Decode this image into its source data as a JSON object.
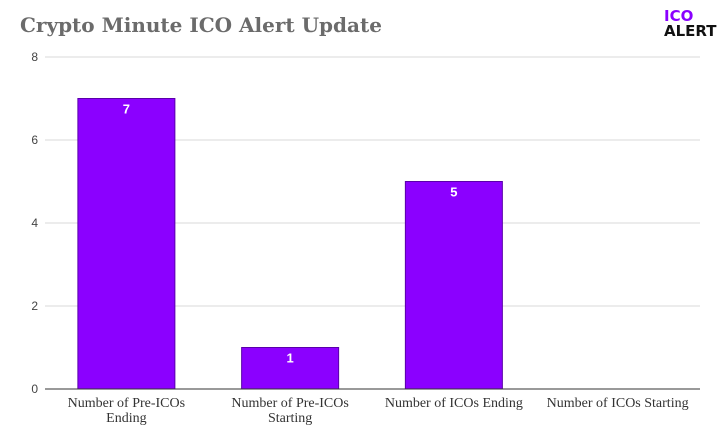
{
  "header": {
    "title": "Crypto Minute ICO Alert Update",
    "logo_line1": "ICO",
    "logo_line2": "ALERT"
  },
  "colors": {
    "bar": "#8b00ff",
    "bar_edge": "#5a00aa",
    "grid": "#d9d9d9",
    "axis": "#333333"
  },
  "chart_data": {
    "type": "bar",
    "title": "Crypto Minute ICO Alert Update",
    "categories": [
      [
        "Number of Pre-ICOs",
        "Ending"
      ],
      [
        "Number of Pre-ICOs",
        "Starting"
      ],
      [
        "Number of ICOs Ending"
      ],
      [
        "Number of ICOs Starting"
      ]
    ],
    "values": [
      7,
      1,
      5,
      0
    ],
    "data_labels": [
      "7",
      "1",
      "5",
      ""
    ],
    "ylim": [
      0,
      8
    ],
    "yticks": [
      0,
      2,
      4,
      6,
      8
    ],
    "grid": true,
    "legend": "none"
  }
}
